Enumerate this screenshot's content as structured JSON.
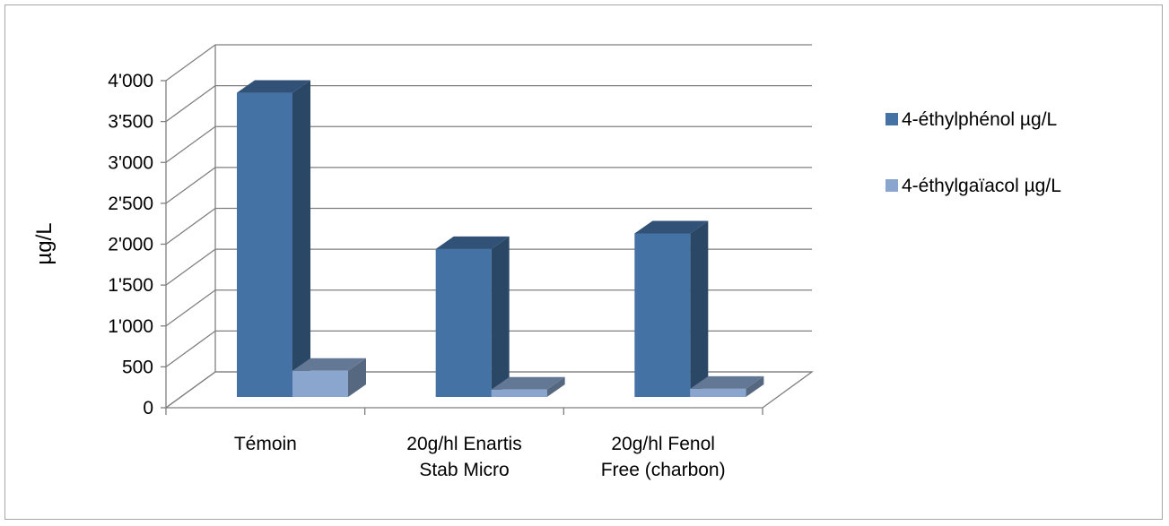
{
  "chart_data": {
    "type": "bar",
    "title": "",
    "ylabel": "µg/L",
    "xlabel": "",
    "ylim": [
      0,
      4000
    ],
    "yticks": [
      0,
      500,
      1000,
      1500,
      2000,
      2500,
      3000,
      3500,
      4000
    ],
    "ytick_labels": [
      "0",
      "500",
      "1'000",
      "1'500",
      "2'000",
      "2'500",
      "3'000",
      "3'500",
      "4'000"
    ],
    "categories": [
      [
        "Témoin"
      ],
      [
        "20g/hl Enartis",
        "Stab Micro"
      ],
      [
        "20g/hl Fenol",
        "Free (charbon)"
      ]
    ],
    "series": [
      {
        "name": "4-éthylphénol µg/L",
        "values": [
          3720,
          1810,
          2000
        ],
        "color": "#4472a4"
      },
      {
        "name": "4-éthylgaïacol µg/L",
        "values": [
          320,
          90,
          100
        ],
        "color": "#8aa6cf"
      }
    ],
    "grid": true,
    "legend": "right",
    "style": "3d-clustered-column"
  }
}
